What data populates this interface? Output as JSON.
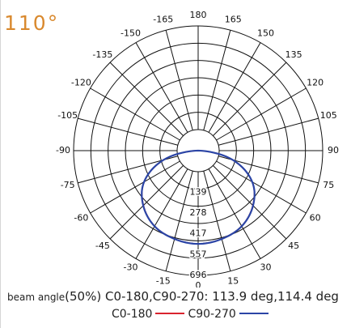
{
  "title_angle": "110°",
  "beam_text": {
    "prefix": "beam angle",
    "body": "(50%) C0-180,C90-270: 113.9 deg,114.4 deg"
  },
  "colors": {
    "title": "#d9892e",
    "c0_180": "#d9232e",
    "c90_270": "#2b45a6",
    "grid": "#111111"
  },
  "chart_data": {
    "type": "polar",
    "angle_labels": [
      "180",
      "165",
      "150",
      "135",
      "120",
      "105",
      "90",
      "75",
      "60",
      "45",
      "30",
      "15",
      "0",
      "-15",
      "-30",
      "-45",
      "-60",
      "-75",
      "-90",
      "-105",
      "-120",
      "-135",
      "-150",
      "-165"
    ],
    "radial_ticks": [
      139,
      278,
      417,
      557,
      696
    ],
    "rmax": 696,
    "series": [
      {
        "name": "C0-180",
        "angles": [
          -90,
          -75,
          -60,
          -45,
          -30,
          -15,
          0,
          15,
          30,
          45,
          60,
          75,
          90
        ],
        "values": [
          0,
          240,
          419,
          520,
          585,
          613,
          625,
          613,
          585,
          520,
          419,
          240,
          0
        ]
      },
      {
        "name": "C90-270",
        "angles": [
          -90,
          -75,
          -60,
          -45,
          -30,
          -15,
          0,
          15,
          30,
          45,
          60,
          75,
          90
        ],
        "values": [
          0,
          242,
          420,
          522,
          586,
          614,
          626,
          614,
          586,
          522,
          420,
          242,
          0
        ]
      }
    ]
  }
}
